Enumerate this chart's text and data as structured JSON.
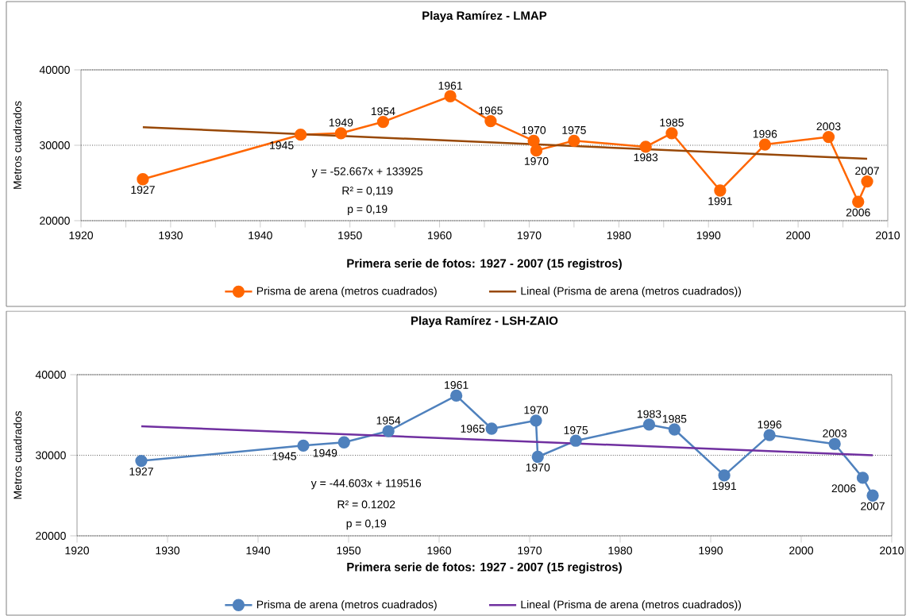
{
  "chart_data": [
    {
      "type": "line",
      "title": "Playa Ramírez - LMAP",
      "xlabel": "Primera serie de fotos: 1927 - 2007 (15 registros)",
      "ylabel": "Metros cuadrados",
      "xlim": [
        1920,
        2010
      ],
      "xticks": [
        1920,
        {
          "value": 1925,
          "label": null
        },
        1930,
        {
          "value": 1935,
          "label": null
        },
        1940,
        {
          "value": 1945,
          "label": null
        },
        1950,
        {
          "value": 1955,
          "label": null
        },
        1960,
        {
          "value": 1965,
          "label": null
        },
        1970,
        {
          "value": 1975,
          "label": null
        },
        1980,
        {
          "value": 1985,
          "label": null
        },
        1990,
        {
          "value": 1995,
          "label": null
        },
        2000,
        {
          "value": 2005,
          "label": null
        },
        2010
      ],
      "ylim": [
        20000,
        40000
      ],
      "yticks": [
        20000,
        30000,
        40000
      ],
      "grid": "y",
      "legend": "bottom",
      "series": [
        {
          "name": "Prisma de arena (metros cuadrados)",
          "color": "#ff6600",
          "marker": "circle",
          "x": [
            1926.9,
            1944.5,
            1949.0,
            1953.7,
            1961.2,
            1965.7,
            1970.5,
            1970.8,
            1975.0,
            1983.0,
            1985.9,
            1991.3,
            1996.3,
            2003.4,
            2006.7,
            2007.7
          ],
          "values": [
            25500,
            31400,
            31600,
            33100,
            36500,
            33200,
            30600,
            29300,
            30600,
            29800,
            31600,
            24000,
            30100,
            31100,
            22500,
            25200
          ]
        },
        {
          "name": "Lineal (Prisma de arena (metros cuadrados))",
          "color": "#984807",
          "type": "line",
          "marker": "none",
          "x": [
            1926.9,
            2007.7
          ],
          "values": [
            32400,
            28200
          ]
        }
      ],
      "annotations": [
        {
          "text": "1927",
          "x": 1926.9,
          "y": 25500
        },
        {
          "text": "1945",
          "x": 1944.5,
          "y": 31400
        },
        {
          "text": "1949",
          "x": 1949.0,
          "y": 31600
        },
        {
          "text": "1954",
          "x": 1953.7,
          "y": 33100
        },
        {
          "text": "1961",
          "x": 1961.2,
          "y": 36500
        },
        {
          "text": "1965",
          "x": 1965.7,
          "y": 33200
        },
        {
          "text": "1970",
          "x": 1970.5,
          "y": 30600
        },
        {
          "text": "1970",
          "x": 1970.8,
          "y": 29300
        },
        {
          "text": "1975",
          "x": 1975.0,
          "y": 30600
        },
        {
          "text": "1983",
          "x": 1983.0,
          "y": 29800
        },
        {
          "text": "1985",
          "x": 1985.9,
          "y": 31600
        },
        {
          "text": "1991",
          "x": 1991.3,
          "y": 24000
        },
        {
          "text": "1996",
          "x": 1996.3,
          "y": 30100
        },
        {
          "text": "2003",
          "x": 2003.4,
          "y": 31100
        },
        {
          "text": "2006",
          "x": 2006.7,
          "y": 22500
        },
        {
          "text": "2007",
          "x": 2007.7,
          "y": 25200
        },
        "y = -52.667x  + 133925",
        "R² = 0,119",
        "p = 0,19"
      ]
    },
    {
      "type": "line",
      "title": "Playa Ramírez -  LSH-ZAIO",
      "xlabel": "Primera serie de fotos: 1927 - 2007 (15 registros)",
      "ylabel": "Metros cuadrados",
      "xlim": [
        1920,
        2010
      ],
      "xticks": [
        1920,
        1930,
        1940,
        1950,
        1960,
        1970,
        1980,
        1990,
        2000,
        2010
      ],
      "ylim": [
        20000,
        40000
      ],
      "yticks": [
        20000,
        30000,
        40000
      ],
      "grid": "y",
      "legend": "bottom",
      "series": [
        {
          "name": "Prisma de arena (metros cuadrados)",
          "color": "#4f81bd",
          "marker": "circle",
          "x": [
            1927.1,
            1945.0,
            1949.5,
            1954.4,
            1961.9,
            1965.8,
            1970.7,
            1970.9,
            1975.1,
            1983.2,
            1986.0,
            1991.5,
            1996.5,
            2003.7,
            2006.8,
            2007.9
          ],
          "values": [
            29300,
            31200,
            31600,
            33000,
            37400,
            33300,
            34300,
            29800,
            31800,
            33800,
            33200,
            27500,
            32500,
            31400,
            27200,
            25000
          ]
        },
        {
          "name": "Lineal (Prisma de arena (metros cuadrados))",
          "color": "#7030a0",
          "type": "line",
          "marker": "none",
          "x": [
            1927.1,
            2007.9
          ],
          "values": [
            33600,
            30000
          ]
        }
      ],
      "annotations": [
        {
          "text": "1927",
          "x": 1927.1,
          "y": 29300
        },
        {
          "text": "1945",
          "x": 1945.0,
          "y": 31200
        },
        {
          "text": "1949",
          "x": 1949.5,
          "y": 31600
        },
        {
          "text": "1954",
          "x": 1954.4,
          "y": 33000
        },
        {
          "text": "1961",
          "x": 1961.9,
          "y": 37400
        },
        {
          "text": "1965",
          "x": 1965.8,
          "y": 33300
        },
        {
          "text": "1970",
          "x": 1970.7,
          "y": 34300
        },
        {
          "text": "1970",
          "x": 1970.9,
          "y": 29800
        },
        {
          "text": "1975",
          "x": 1975.1,
          "y": 31800
        },
        {
          "text": "1983",
          "x": 1983.2,
          "y": 33800
        },
        {
          "text": "1985",
          "x": 1986.0,
          "y": 33200
        },
        {
          "text": "1991",
          "x": 1991.5,
          "y": 27500
        },
        {
          "text": "1996",
          "x": 1996.5,
          "y": 32500
        },
        {
          "text": "2003",
          "x": 2003.7,
          "y": 31400
        },
        {
          "text": "2006",
          "x": 2006.8,
          "y": 27200
        },
        {
          "text": "2007",
          "x": 2007.9,
          "y": 25000
        },
        "y = -44.603x  + 119516",
        "R² = 0.1202",
        "p = 0,19"
      ]
    }
  ]
}
